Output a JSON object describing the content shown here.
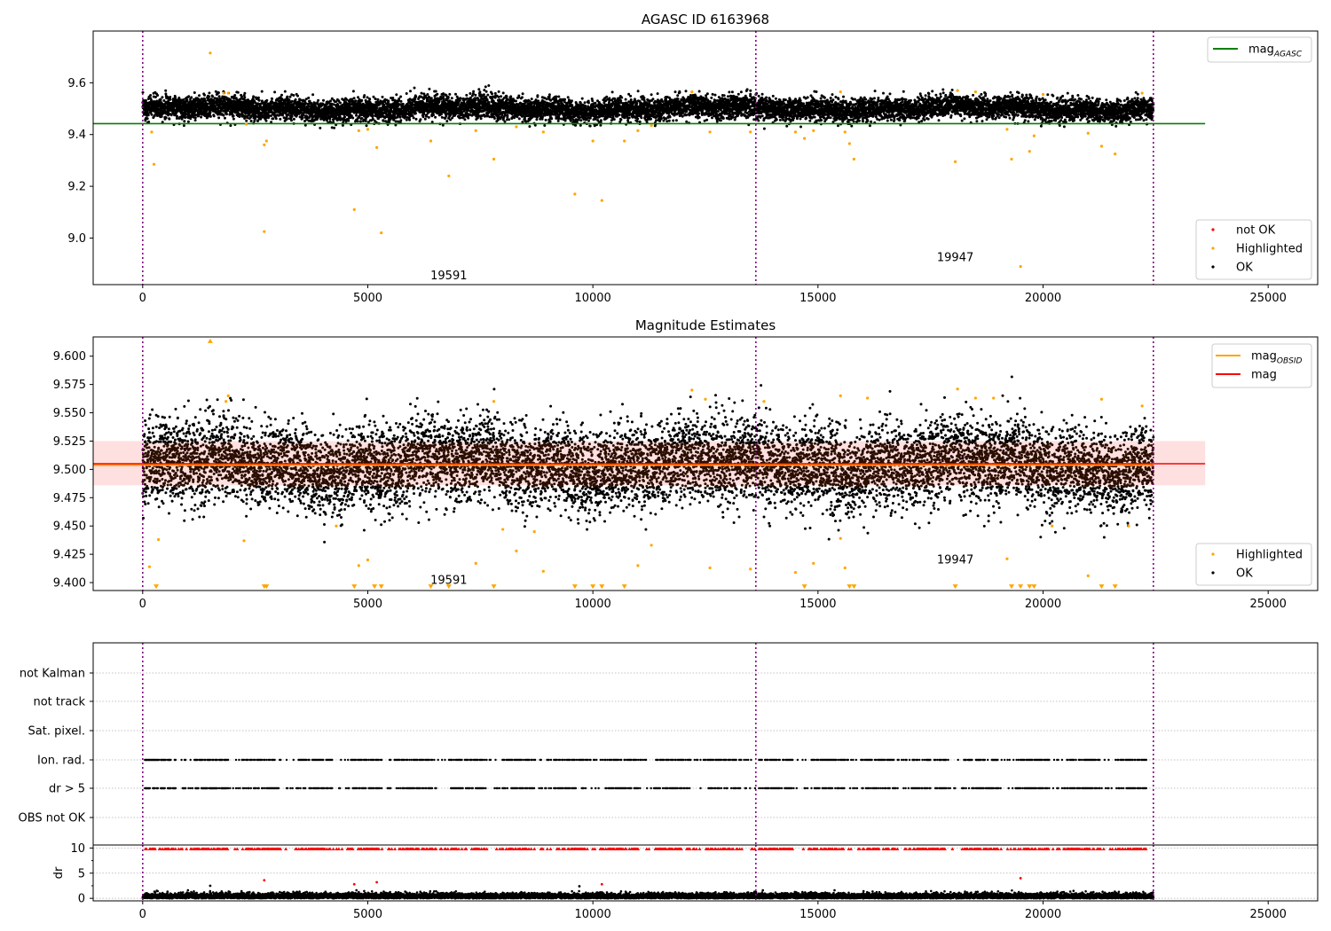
{
  "chart_data": [
    {
      "type": "scatter",
      "title": "AGASC ID 6163968",
      "xlim": [
        -1100,
        26100
      ],
      "ylim": [
        8.82,
        9.8
      ],
      "x_ticks": [
        0,
        5000,
        10000,
        15000,
        20000,
        25000
      ],
      "y_ticks": [
        9.0,
        9.2,
        9.4,
        9.6
      ],
      "y_tick_labels": [
        "9.0",
        "9.2",
        "9.4",
        "9.6"
      ],
      "obsid_boundaries": [
        0,
        13620,
        22450
      ],
      "obsid_labels": [
        {
          "text": "19591",
          "x": 6800,
          "y": 8.84
        },
        {
          "text": "19947",
          "x": 18050,
          "y": 8.91
        }
      ],
      "lines": [
        {
          "name": "mag",
          "subscript": "AGASC",
          "y": 9.442,
          "x_range": [
            -1100,
            23600
          ],
          "color": "#008000"
        }
      ],
      "legends": [
        {
          "placement": "top-right",
          "entries": [
            {
              "label": "mag",
              "subscript": "AGASC",
              "kind": "line",
              "color": "#008000"
            }
          ]
        },
        {
          "placement": "bottom-right",
          "entries": [
            {
              "label": "not OK",
              "kind": "marker",
              "color": "#ff0000"
            },
            {
              "label": "Highlighted",
              "kind": "marker",
              "color": "#ffa500"
            },
            {
              "label": "OK",
              "kind": "marker",
              "color": "#000000"
            }
          ]
        }
      ],
      "series": [
        {
          "name": "OK",
          "color": "#000000",
          "band": {
            "center": 9.5,
            "spread": 0.022,
            "x_range": [
              0,
              22450
            ]
          }
        },
        {
          "name": "Highlighted",
          "color": "#ffa500",
          "points": [
            [
              1500,
              9.715
            ],
            [
              1900,
              9.56
            ],
            [
              2300,
              9.44
            ],
            [
              2700,
              9.36
            ],
            [
              2750,
              9.375
            ],
            [
              2700,
              9.025
            ],
            [
              4700,
              9.11
            ],
            [
              4800,
              9.415
            ],
            [
              5000,
              9.42
            ],
            [
              5200,
              9.35
            ],
            [
              5300,
              9.02
            ],
            [
              200,
              9.41
            ],
            [
              250,
              9.285
            ],
            [
              6400,
              9.375
            ],
            [
              6800,
              9.24
            ],
            [
              7400,
              9.415
            ],
            [
              7800,
              9.305
            ],
            [
              8300,
              9.43
            ],
            [
              8900,
              9.41
            ],
            [
              9600,
              9.17
            ],
            [
              10000,
              9.375
            ],
            [
              10200,
              9.145
            ],
            [
              10700,
              9.375
            ],
            [
              11000,
              9.415
            ],
            [
              11300,
              9.435
            ],
            [
              12600,
              9.41
            ],
            [
              13500,
              9.41
            ],
            [
              14500,
              9.41
            ],
            [
              14700,
              9.385
            ],
            [
              14900,
              9.415
            ],
            [
              15600,
              9.41
            ],
            [
              15700,
              9.365
            ],
            [
              15800,
              9.305
            ],
            [
              18050,
              9.295
            ],
            [
              19200,
              9.42
            ],
            [
              19300,
              9.305
            ],
            [
              19500,
              8.89
            ],
            [
              19700,
              9.335
            ],
            [
              19800,
              9.395
            ],
            [
              21000,
              9.405
            ],
            [
              21300,
              9.355
            ],
            [
              21600,
              9.325
            ],
            [
              1800,
              9.56
            ],
            [
              12200,
              9.565
            ],
            [
              15500,
              9.565
            ],
            [
              18100,
              9.57
            ],
            [
              18500,
              9.565
            ],
            [
              20000,
              9.555
            ],
            [
              22200,
              9.56
            ]
          ]
        }
      ]
    },
    {
      "type": "scatter",
      "title": "Magnitude Estimates",
      "xlim": [
        -1100,
        26100
      ],
      "ylim": [
        9.393,
        9.617
      ],
      "x_ticks": [
        0,
        5000,
        10000,
        15000,
        20000,
        25000
      ],
      "y_ticks": [
        9.4,
        9.425,
        9.45,
        9.475,
        9.5,
        9.525,
        9.55,
        9.575,
        9.6
      ],
      "y_tick_labels": [
        "9.400",
        "9.425",
        "9.450",
        "9.475",
        "9.500",
        "9.525",
        "9.550",
        "9.575",
        "9.600"
      ],
      "obsid_boundaries": [
        0,
        13620,
        22450
      ],
      "obsid_labels": [
        {
          "text": "19591",
          "x": 6800,
          "y": 9.399
        },
        {
          "text": "19947",
          "x": 18050,
          "y": 9.417
        }
      ],
      "lines": [
        {
          "name": "mag",
          "subscript": "OBSID",
          "y": 9.505,
          "x_range": [
            -1100,
            22450
          ],
          "color": "#ffa500"
        },
        {
          "name": "mag",
          "y": 9.505,
          "x_range": [
            -1100,
            23600
          ],
          "color": "#ff0000"
        }
      ],
      "shaded_band": {
        "y_range": [
          9.486,
          9.525
        ],
        "x_range": [
          -1100,
          23600
        ],
        "color": "#ff0000",
        "alpha": 0.12
      },
      "legends": [
        {
          "placement": "top-right",
          "entries": [
            {
              "label": "mag",
              "subscript": "OBSID",
              "kind": "line",
              "color": "#ffa500"
            },
            {
              "label": "mag",
              "kind": "line",
              "color": "#ff0000"
            }
          ]
        },
        {
          "placement": "bottom-right",
          "entries": [
            {
              "label": "Highlighted",
              "kind": "marker",
              "color": "#ffa500"
            },
            {
              "label": "OK",
              "kind": "marker",
              "color": "#000000"
            }
          ]
        }
      ],
      "series": [
        {
          "name": "OK",
          "color": "#000000",
          "band": {
            "center": 9.504,
            "spread": 0.018,
            "x_range": [
              0,
              22450
            ]
          }
        },
        {
          "name": "Highlighted",
          "color": "#ffa500",
          "points": [
            [
              150,
              9.414
            ],
            [
              300,
              9.396
            ],
            [
              350,
              9.438
            ],
            [
              1500,
              9.614
            ],
            [
              1900,
              9.565
            ],
            [
              2250,
              9.437
            ],
            [
              2700,
              9.396
            ],
            [
              2750,
              9.396
            ],
            [
              4300,
              9.45
            ],
            [
              4700,
              9.396
            ],
            [
              4800,
              9.415
            ],
            [
              5000,
              9.42
            ],
            [
              5150,
              9.396
            ],
            [
              5300,
              9.396
            ],
            [
              6400,
              9.396
            ],
            [
              6800,
              9.396
            ],
            [
              7400,
              9.417
            ],
            [
              7800,
              9.396
            ],
            [
              8000,
              9.447
            ],
            [
              8300,
              9.428
            ],
            [
              8700,
              9.445
            ],
            [
              8900,
              9.41
            ],
            [
              9600,
              9.396
            ],
            [
              10000,
              9.396
            ],
            [
              10200,
              9.396
            ],
            [
              10700,
              9.396
            ],
            [
              11000,
              9.415
            ],
            [
              11300,
              9.433
            ],
            [
              12600,
              9.413
            ],
            [
              13500,
              9.412
            ],
            [
              14500,
              9.409
            ],
            [
              14700,
              9.396
            ],
            [
              14900,
              9.417
            ],
            [
              15500,
              9.439
            ],
            [
              15600,
              9.413
            ],
            [
              15700,
              9.396
            ],
            [
              15800,
              9.396
            ],
            [
              18050,
              9.396
            ],
            [
              19200,
              9.421
            ],
            [
              19300,
              9.396
            ],
            [
              19500,
              9.396
            ],
            [
              19700,
              9.396
            ],
            [
              19800,
              9.396
            ],
            [
              20200,
              9.45
            ],
            [
              21000,
              9.406
            ],
            [
              21300,
              9.396
            ],
            [
              21600,
              9.396
            ],
            [
              21900,
              9.45
            ],
            [
              1850,
              9.56
            ],
            [
              7800,
              9.56
            ],
            [
              12200,
              9.57
            ],
            [
              12500,
              9.562
            ],
            [
              13800,
              9.56
            ],
            [
              15500,
              9.565
            ],
            [
              16100,
              9.563
            ],
            [
              18100,
              9.571
            ],
            [
              18500,
              9.563
            ],
            [
              18900,
              9.563
            ],
            [
              21300,
              9.562
            ],
            [
              22200,
              9.556
            ]
          ]
        }
      ]
    },
    {
      "type": "scatter",
      "title": "",
      "xlim": [
        -1100,
        26100
      ],
      "categories": [
        "not Kalman",
        "not track",
        "Sat. pixel.",
        "Ion. rad.",
        "dr > 5",
        "OBS not OK"
      ],
      "obsid_boundaries": [
        0,
        13620,
        22450
      ],
      "series": [
        {
          "name": "Ion. rad.",
          "color": "#000000",
          "x_range": [
            0,
            22450
          ]
        },
        {
          "name": "dr > 5",
          "color": "#000000",
          "x_range": [
            0,
            22450
          ]
        }
      ]
    },
    {
      "type": "scatter",
      "title": "",
      "ylabel": "dr",
      "xlim": [
        -1100,
        26100
      ],
      "ylim": [
        -0.5,
        10.6
      ],
      "x_ticks": [
        0,
        5000,
        10000,
        15000,
        20000,
        25000
      ],
      "y_ticks": [
        0,
        5,
        10
      ],
      "y_tick_labels": [
        "0",
        "5",
        "10"
      ],
      "obsid_boundaries": [
        0,
        13620,
        22450
      ],
      "series": [
        {
          "name": "dr",
          "color": "#000000",
          "band": {
            "center": 0.4,
            "spread": 0.35,
            "x_range": [
              0,
              22450
            ]
          }
        },
        {
          "name": "dr clipped",
          "color": "#ff0000",
          "y": 9.8,
          "x_range": [
            0,
            22450
          ]
        },
        {
          "name": "dr outliers",
          "color": "#ff0000",
          "points": [
            [
              2700,
              3.6
            ],
            [
              4700,
              2.8
            ],
            [
              5200,
              3.2
            ],
            [
              10200,
              2.8
            ],
            [
              19500,
              4.0
            ]
          ]
        },
        {
          "name": "dr outliers ok",
          "color": "#000000",
          "points": [
            [
              1500,
              2.5
            ],
            [
              9700,
              2.4
            ]
          ]
        }
      ]
    }
  ]
}
